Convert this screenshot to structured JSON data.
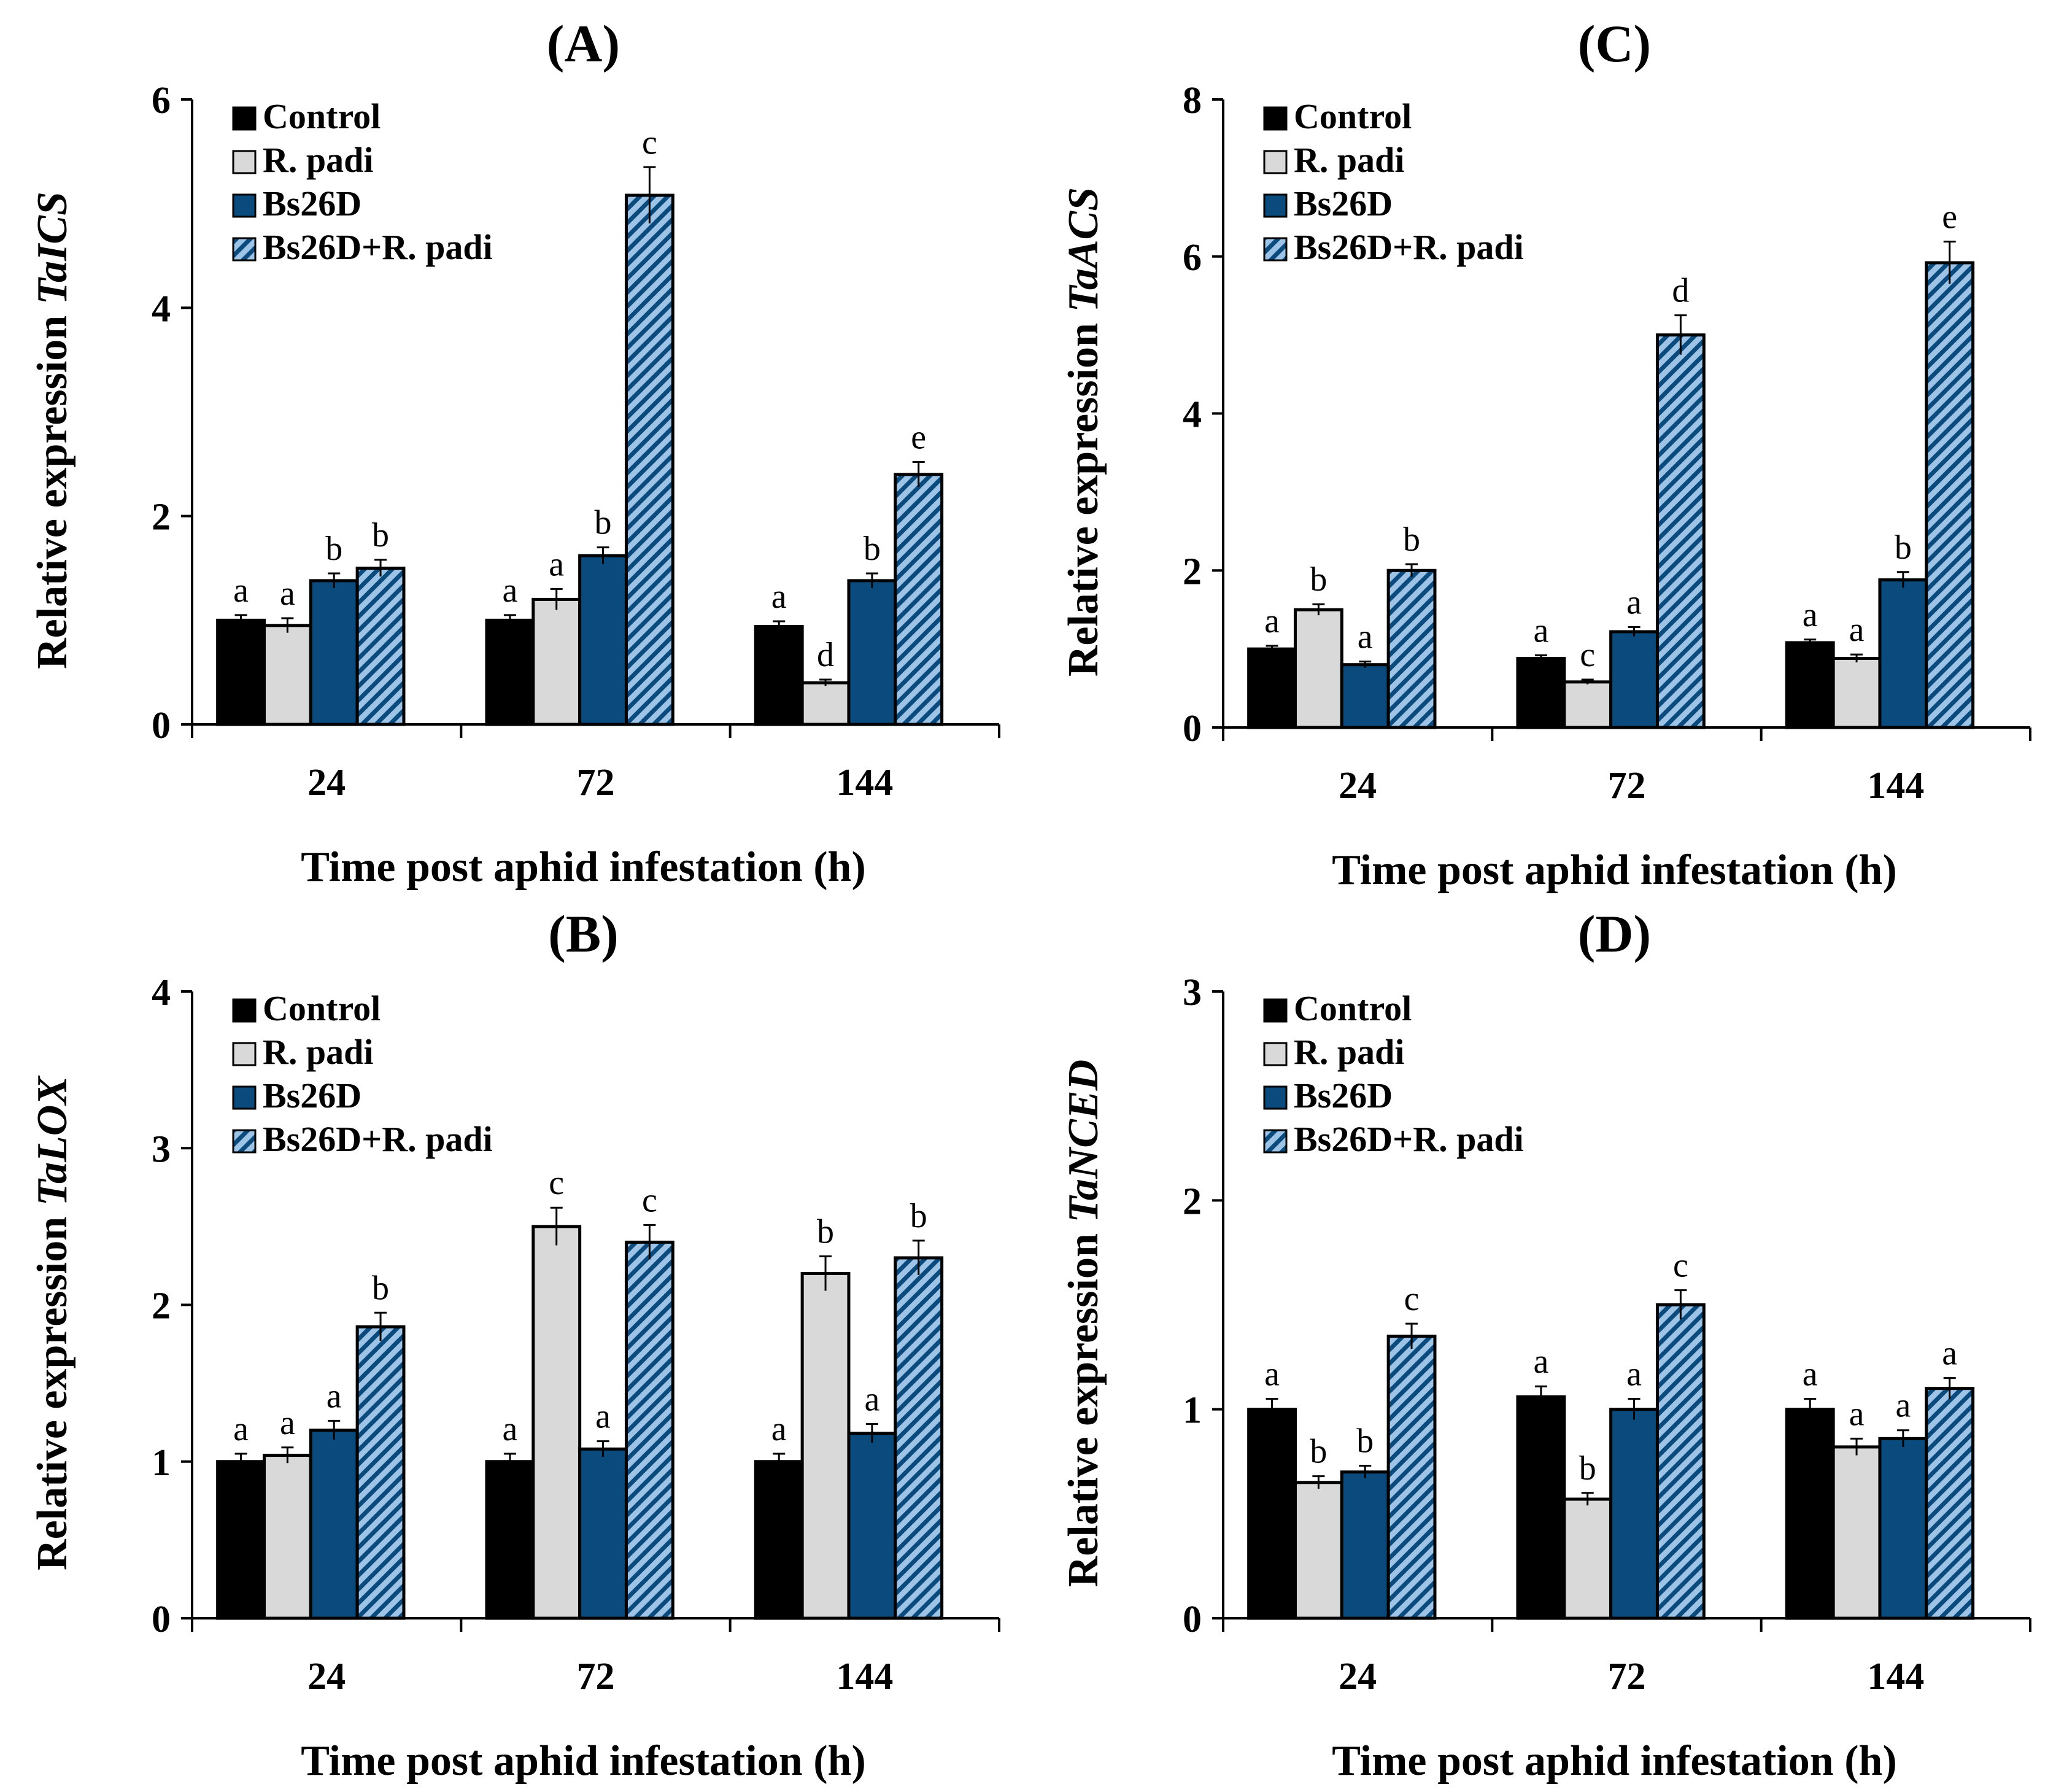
{
  "legend": [
    "Control",
    "R. padi",
    "Bs26D",
    "Bs26D+R. padi"
  ],
  "colors": {
    "control": "#000000",
    "rpadi": "#d9d9d9",
    "bs26d": "#0b4a7d",
    "bs26d_rpadi": "#9dc3e6",
    "hatch": "#0b4a7d"
  },
  "chart_data": [
    {
      "panel": "A",
      "type": "bar",
      "title": "(A)",
      "ylabel_prefix": "Relative expression ",
      "ylabel_gene": "TaICS",
      "xlabel": "Time post aphid infestation (h)",
      "categories": [
        "24",
        "72",
        "144"
      ],
      "ylim": [
        0,
        6
      ],
      "yticks": [
        0,
        2,
        4,
        6
      ],
      "series": [
        {
          "name": "Control",
          "values": [
            1.0,
            1.0,
            0.94
          ],
          "errors": [
            0.05,
            0.05,
            0.05
          ],
          "letters": [
            "a",
            "a",
            "a"
          ]
        },
        {
          "name": "R. padi",
          "values": [
            0.95,
            1.2,
            0.4
          ],
          "errors": [
            0.07,
            0.1,
            0.03
          ],
          "letters": [
            "a",
            "a",
            "d"
          ]
        },
        {
          "name": "Bs26D",
          "values": [
            1.38,
            1.62,
            1.38
          ],
          "errors": [
            0.07,
            0.08,
            0.07
          ],
          "letters": [
            "b",
            "b",
            "b"
          ]
        },
        {
          "name": "Bs26D+R. padi",
          "values": [
            1.5,
            5.08,
            2.4
          ],
          "errors": [
            0.08,
            0.27,
            0.12
          ],
          "letters": [
            "b",
            "c",
            "e"
          ]
        }
      ]
    },
    {
      "panel": "C",
      "type": "bar",
      "title": "(C)",
      "ylabel_prefix": "Relative expression ",
      "ylabel_gene": "TaACS",
      "xlabel": "Time post aphid infestation (h)",
      "categories": [
        "24",
        "72",
        "144"
      ],
      "ylim": [
        0,
        8
      ],
      "yticks": [
        0,
        2,
        4,
        6,
        8
      ],
      "series": [
        {
          "name": "Control",
          "values": [
            1.0,
            0.88,
            1.08
          ],
          "errors": [
            0.04,
            0.04,
            0.04
          ],
          "letters": [
            "a",
            "a",
            "a"
          ]
        },
        {
          "name": "R. padi",
          "values": [
            1.5,
            0.58,
            0.88
          ],
          "errors": [
            0.07,
            0.03,
            0.05
          ],
          "letters": [
            "b",
            "c",
            "a"
          ]
        },
        {
          "name": "Bs26D",
          "values": [
            0.8,
            1.22,
            1.88
          ],
          "errors": [
            0.04,
            0.06,
            0.1
          ],
          "letters": [
            "a",
            "a",
            "b"
          ]
        },
        {
          "name": "Bs26D+R. padi",
          "values": [
            2.0,
            5.0,
            5.92
          ],
          "errors": [
            0.08,
            0.25,
            0.27
          ],
          "letters": [
            "b",
            "d",
            "e"
          ]
        }
      ]
    },
    {
      "panel": "B",
      "type": "bar",
      "title": "(B)",
      "ylabel_prefix": "Relative expression ",
      "ylabel_gene": "TaLOX",
      "xlabel": "Time post aphid infestation (h)",
      "categories": [
        "24",
        "72",
        "144"
      ],
      "ylim": [
        0,
        4
      ],
      "yticks": [
        0,
        1,
        2,
        3,
        4
      ],
      "series": [
        {
          "name": "Control",
          "values": [
            1.0,
            1.0,
            1.0
          ],
          "errors": [
            0.05,
            0.05,
            0.05
          ],
          "letters": [
            "a",
            "a",
            "a"
          ]
        },
        {
          "name": "R. padi",
          "values": [
            1.04,
            2.5,
            2.2
          ],
          "errors": [
            0.05,
            0.12,
            0.11
          ],
          "letters": [
            "a",
            "c",
            "b"
          ]
        },
        {
          "name": "Bs26D",
          "values": [
            1.2,
            1.08,
            1.18
          ],
          "errors": [
            0.06,
            0.05,
            0.06
          ],
          "letters": [
            "a",
            "a",
            "a"
          ]
        },
        {
          "name": "Bs26D+R. padi",
          "values": [
            1.86,
            2.4,
            2.3
          ],
          "errors": [
            0.09,
            0.11,
            0.11
          ],
          "letters": [
            "b",
            "c",
            "b"
          ]
        }
      ]
    },
    {
      "panel": "D",
      "type": "bar",
      "title": "(D)",
      "ylabel_prefix": "Relative expression ",
      "ylabel_gene": "TaNCED",
      "xlabel": "Time post aphid infestation (h)",
      "categories": [
        "24",
        "72",
        "144"
      ],
      "ylim": [
        0,
        3
      ],
      "yticks": [
        0,
        1,
        2,
        3
      ],
      "series": [
        {
          "name": "Control",
          "values": [
            1.0,
            1.06,
            1.0
          ],
          "errors": [
            0.05,
            0.05,
            0.05
          ],
          "letters": [
            "a",
            "a",
            "a"
          ]
        },
        {
          "name": "R. padi",
          "values": [
            0.65,
            0.57,
            0.82
          ],
          "errors": [
            0.03,
            0.03,
            0.04
          ],
          "letters": [
            "b",
            "b",
            "a"
          ]
        },
        {
          "name": "Bs26D",
          "values": [
            0.7,
            1.0,
            0.86
          ],
          "errors": [
            0.03,
            0.05,
            0.04
          ],
          "letters": [
            "b",
            "a",
            "a"
          ]
        },
        {
          "name": "Bs26D+R. padi",
          "values": [
            1.35,
            1.5,
            1.1
          ],
          "errors": [
            0.06,
            0.07,
            0.05
          ],
          "letters": [
            "c",
            "c",
            "a"
          ]
        }
      ]
    }
  ]
}
